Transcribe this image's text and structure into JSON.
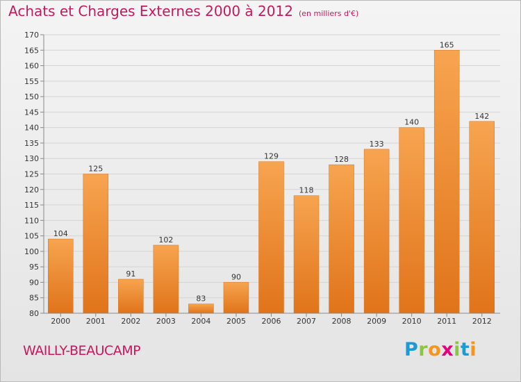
{
  "header": {
    "title": "Achats et Charges Externes 2000 à 2012",
    "subtitle": "(en milliers d'€)"
  },
  "footer": {
    "commune": "WAILLY-BEAUCAMP",
    "brand_letters": [
      "P",
      "r",
      "o",
      "x",
      "i",
      "t",
      "i"
    ],
    "brand_colors": [
      "#1a9ad6",
      "#8cc63e",
      "#f7941d",
      "#e6007e",
      "#8cc63e",
      "#1a9ad6",
      "#f7941d"
    ]
  },
  "chart_data": {
    "type": "bar",
    "title": "Achats et Charges Externes 2000 à 2012",
    "subtitle": "(en milliers d'€)",
    "xlabel": "",
    "ylabel": "",
    "categories": [
      "2000",
      "2001",
      "2002",
      "2003",
      "2004",
      "2005",
      "2006",
      "2007",
      "2008",
      "2009",
      "2010",
      "2011",
      "2012"
    ],
    "values": [
      104,
      125,
      91,
      102,
      83,
      90,
      129,
      118,
      128,
      133,
      140,
      165,
      142
    ],
    "ylim": [
      80,
      170
    ],
    "yticks": [
      80,
      85,
      90,
      95,
      100,
      105,
      110,
      115,
      120,
      125,
      130,
      135,
      140,
      145,
      150,
      155,
      160,
      165,
      170
    ],
    "grid": true,
    "bar_color": "#f0913a"
  }
}
